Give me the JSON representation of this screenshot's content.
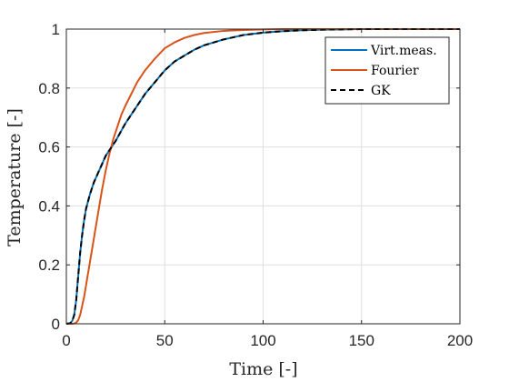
{
  "chart_data": {
    "type": "line",
    "xlabel": "Time [-]",
    "ylabel": "Temperature [-]",
    "xlim": [
      0,
      200
    ],
    "ylim": [
      0,
      1
    ],
    "xticks": [
      0,
      50,
      100,
      150,
      200
    ],
    "yticks": [
      0,
      0.2,
      0.4,
      0.6,
      0.8,
      1
    ],
    "xtick_labels": [
      "0",
      "50",
      "100",
      "150",
      "200"
    ],
    "ytick_labels": [
      "0",
      "0.2",
      "0.4",
      "0.6",
      "0.8",
      "1"
    ],
    "grid": true,
    "legend_position": "top-right",
    "series": [
      {
        "name": "Virt.meas.",
        "color": "#0072BD",
        "style": "solid",
        "x": [
          0,
          2,
          3,
          4,
          5,
          6,
          7,
          8,
          9,
          10,
          12,
          14,
          16,
          18,
          20,
          22,
          25,
          30,
          35,
          40,
          45,
          50,
          55,
          60,
          65,
          70,
          75,
          80,
          90,
          100,
          110,
          120,
          130,
          140,
          150,
          160,
          170,
          180,
          190,
          200
        ],
        "y": [
          0,
          0.002,
          0.01,
          0.03,
          0.08,
          0.16,
          0.24,
          0.3,
          0.35,
          0.39,
          0.44,
          0.48,
          0.51,
          0.54,
          0.57,
          0.59,
          0.62,
          0.68,
          0.73,
          0.78,
          0.82,
          0.86,
          0.89,
          0.91,
          0.93,
          0.945,
          0.955,
          0.965,
          0.98,
          0.988,
          0.993,
          0.996,
          0.998,
          0.999,
          1,
          1,
          1,
          1,
          1,
          1
        ]
      },
      {
        "name": "Fourier",
        "color": "#D95319",
        "style": "solid",
        "x": [
          0,
          3,
          4,
          5,
          6,
          7,
          8,
          9,
          10,
          12,
          14,
          16,
          18,
          20,
          22,
          24,
          26,
          28,
          30,
          33,
          36,
          40,
          45,
          50,
          55,
          60,
          65,
          70,
          80,
          90,
          100,
          110,
          120,
          130,
          140,
          150,
          160,
          170,
          180,
          190,
          200
        ],
        "y": [
          0,
          0,
          0.001,
          0.004,
          0.012,
          0.03,
          0.06,
          0.09,
          0.13,
          0.21,
          0.29,
          0.37,
          0.45,
          0.52,
          0.58,
          0.63,
          0.67,
          0.71,
          0.74,
          0.78,
          0.82,
          0.86,
          0.9,
          0.935,
          0.955,
          0.97,
          0.98,
          0.987,
          0.994,
          0.997,
          0.999,
          1,
          1,
          1,
          1,
          1,
          1,
          1,
          1,
          1,
          1
        ]
      },
      {
        "name": "GK",
        "color": "#000000",
        "style": "dashed",
        "x": [
          0,
          2,
          3,
          4,
          5,
          6,
          7,
          8,
          9,
          10,
          12,
          14,
          16,
          18,
          20,
          22,
          25,
          30,
          35,
          40,
          45,
          50,
          55,
          60,
          65,
          70,
          75,
          80,
          90,
          100,
          110,
          120,
          130,
          140,
          150,
          160,
          170,
          180,
          190,
          200
        ],
        "y": [
          0,
          0.002,
          0.01,
          0.03,
          0.08,
          0.16,
          0.24,
          0.3,
          0.35,
          0.39,
          0.44,
          0.48,
          0.51,
          0.54,
          0.57,
          0.59,
          0.62,
          0.68,
          0.73,
          0.78,
          0.82,
          0.86,
          0.89,
          0.91,
          0.93,
          0.945,
          0.955,
          0.965,
          0.98,
          0.988,
          0.993,
          0.996,
          0.998,
          0.999,
          1,
          1,
          1,
          1,
          1,
          1
        ]
      }
    ]
  }
}
